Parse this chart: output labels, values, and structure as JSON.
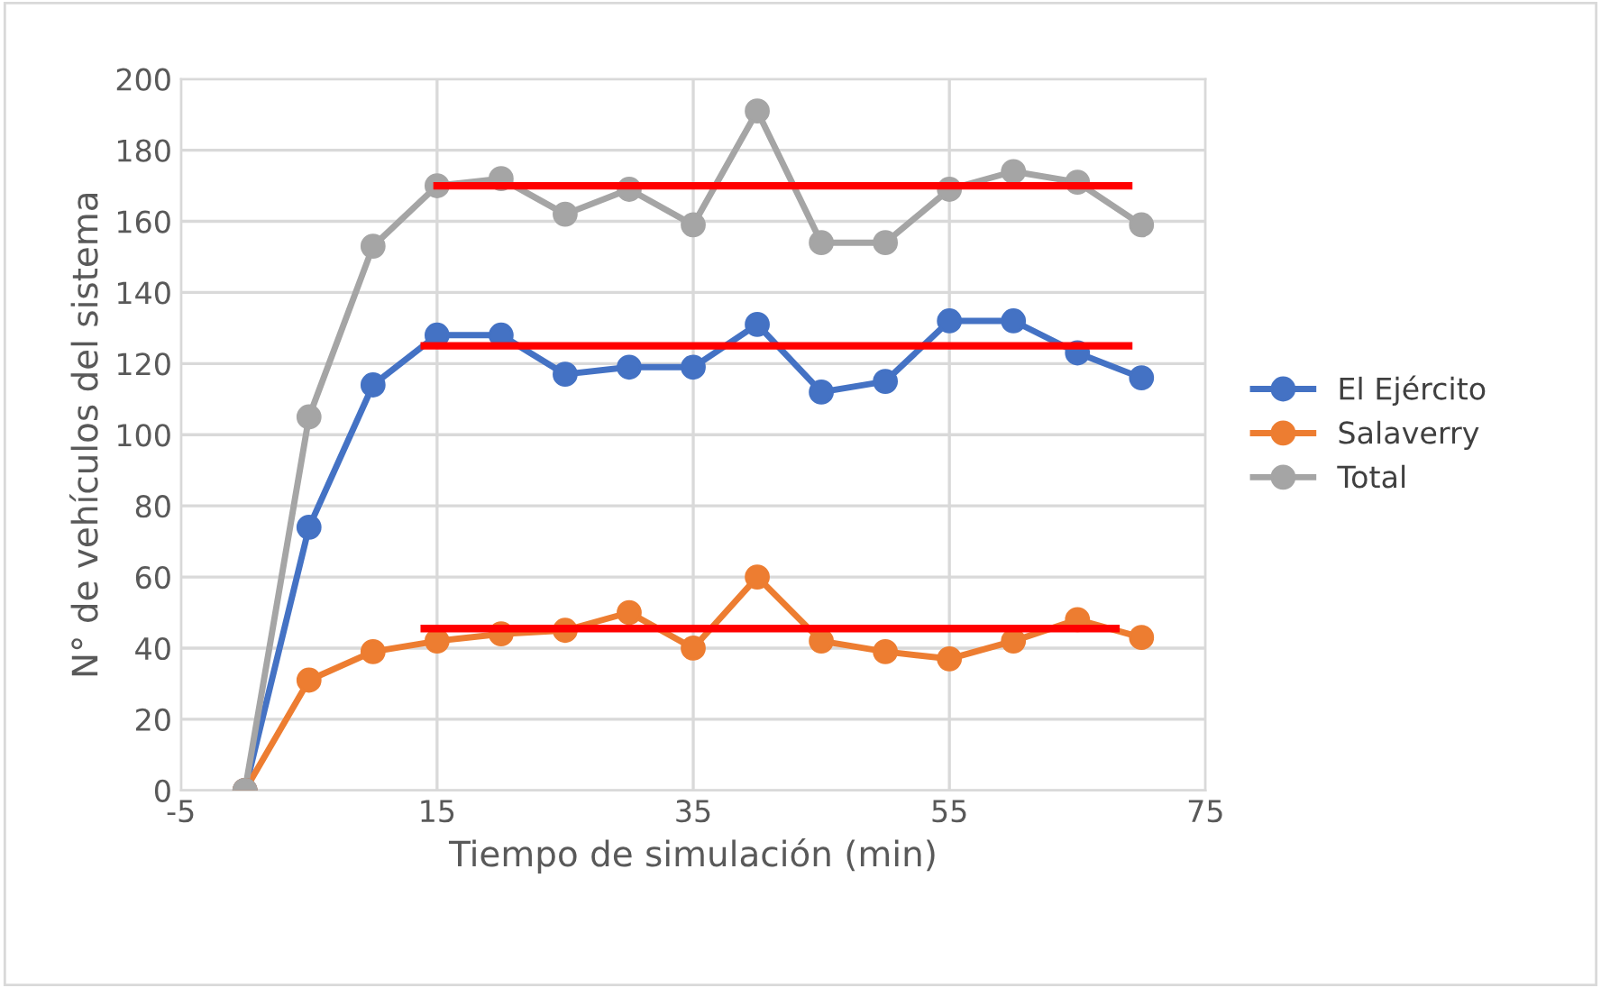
{
  "chart_data": {
    "type": "line",
    "xlabel": "Tiempo de simulación (min)",
    "ylabel": "N° de vehículos del sistema",
    "x": [
      0,
      5,
      10,
      15,
      20,
      25,
      30,
      35,
      40,
      45,
      50,
      55,
      60,
      65,
      70
    ],
    "xlim": [
      -5,
      75
    ],
    "xticks": [
      -5,
      15,
      35,
      55,
      75
    ],
    "ylim": [
      0,
      200
    ],
    "yticks": [
      0,
      20,
      40,
      60,
      80,
      100,
      120,
      140,
      160,
      180,
      200
    ],
    "grid": true,
    "legend": "right",
    "marker": "circle",
    "line_style": "solid",
    "series": [
      {
        "name": "El Ejército",
        "color": "#4472c4",
        "values": [
          0,
          74,
          114,
          128,
          128,
          117,
          119,
          119,
          131,
          112,
          115,
          132,
          132,
          123,
          116
        ]
      },
      {
        "name": "Salaverry",
        "color": "#ed7d31",
        "values": [
          0,
          31,
          39,
          42,
          44,
          45,
          50,
          40,
          60,
          42,
          39,
          37,
          42,
          48,
          43
        ]
      },
      {
        "name": "Total",
        "color": "#a5a5a5",
        "values": [
          0,
          105,
          153,
          170,
          172,
          162,
          169,
          159,
          191,
          154,
          154,
          169,
          174,
          171,
          159
        ]
      },
      {
        "type": "line",
        "marker": "none",
        "color": "#ff0000",
        "x": [
          15,
          69
        ],
        "values": [
          170,
          170
        ]
      },
      {
        "type": "line",
        "marker": "none",
        "color": "#ff0000",
        "x": [
          14,
          69
        ],
        "values": [
          125,
          125
        ]
      },
      {
        "type": "line",
        "marker": "none",
        "color": "#ff0000",
        "x": [
          14,
          68
        ],
        "values": [
          45.5,
          45.5
        ]
      }
    ]
  }
}
